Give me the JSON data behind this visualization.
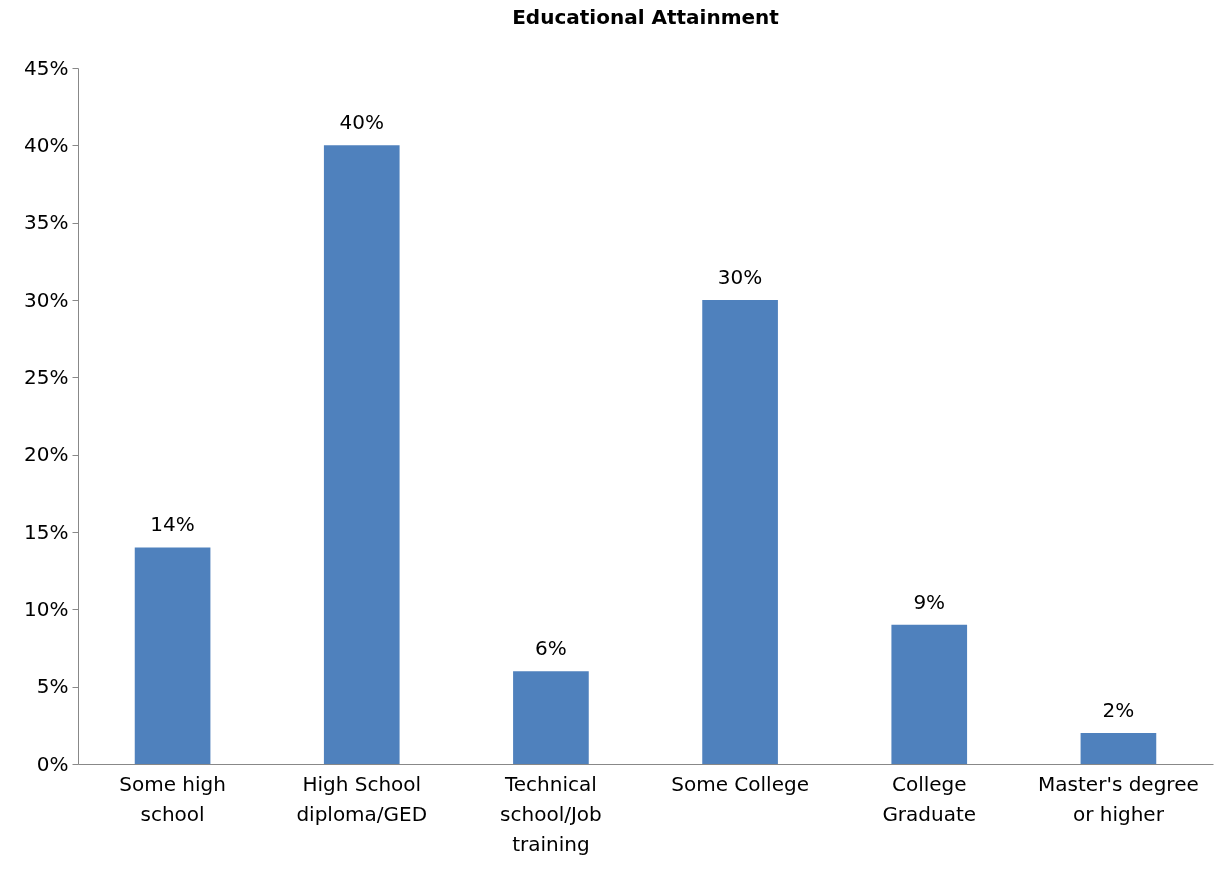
{
  "chart_data": {
    "type": "bar",
    "title": "Educational Attainment",
    "categories": [
      "Some high school",
      "High School diploma/GED",
      "Technical school/Job training",
      "Some College",
      "College Graduate",
      "Master's degree or higher"
    ],
    "values": [
      14,
      40,
      6,
      30,
      9,
      2
    ],
    "value_labels": [
      "14%",
      "40%",
      "6%",
      "30%",
      "9%",
      "2%"
    ],
    "color": "#4f81bd",
    "ylim": [
      0,
      45
    ],
    "yticks": [
      {
        "value": 0,
        "label": "0%"
      },
      {
        "value": 5,
        "label": "5%"
      },
      {
        "value": 10,
        "label": "10%"
      },
      {
        "value": 15,
        "label": "15%"
      },
      {
        "value": 20,
        "label": "20%"
      },
      {
        "value": 25,
        "label": "25%"
      },
      {
        "value": 30,
        "label": "30%"
      },
      {
        "value": 35,
        "label": "35%"
      },
      {
        "value": 40,
        "label": "40%"
      },
      {
        "value": 45,
        "label": "45%"
      }
    ],
    "grid": false
  }
}
